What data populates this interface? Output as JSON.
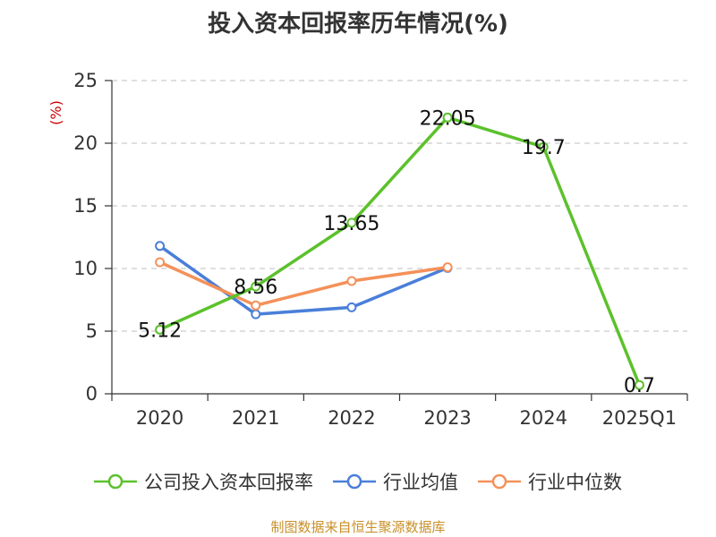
{
  "chart_data": {
    "type": "line",
    "title": "投入资本回报率历年情况(%)",
    "ylabel": "(%)",
    "xlabel": "",
    "ylim": [
      0,
      25
    ],
    "yticks": [
      0,
      5,
      10,
      15,
      20,
      25
    ],
    "categories": [
      "2020",
      "2021",
      "2022",
      "2023",
      "2024",
      "2025Q1"
    ],
    "grid": true,
    "legend_position": "bottom",
    "series": [
      {
        "name": "公司投入资本回报率",
        "color": "#5cc12c",
        "values": [
          5.12,
          8.56,
          13.65,
          22.05,
          19.7,
          0.7
        ],
        "labels": [
          "5.12",
          "8.56",
          "13.65",
          "22.05",
          "19.7",
          "0.7"
        ]
      },
      {
        "name": "行业均值",
        "color": "#4a7fd9",
        "values": [
          11.8,
          6.35,
          6.9,
          10.05,
          null,
          null
        ]
      },
      {
        "name": "行业中位数",
        "color": "#f4915a",
        "values": [
          10.5,
          7.05,
          9.0,
          10.1,
          null,
          null
        ]
      }
    ],
    "source": "制图数据来自恒生聚源数据库"
  }
}
